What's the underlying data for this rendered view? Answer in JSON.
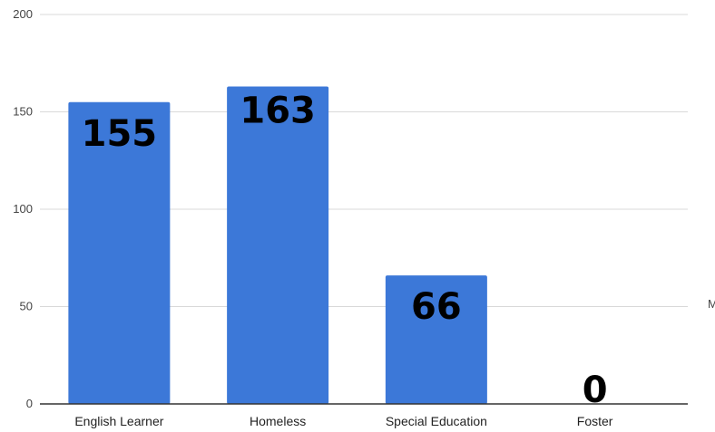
{
  "chart_data": {
    "type": "bar",
    "title": "",
    "xlabel": "",
    "ylabel": "",
    "categories": [
      "English Learner",
      "Homeless",
      "Special Education",
      "Foster"
    ],
    "values": [
      155,
      163,
      66,
      0
    ],
    "data_labels": [
      "155",
      "163",
      "66",
      "0"
    ],
    "ylim": [
      0,
      200
    ],
    "yticks": [
      "0",
      "50",
      "100",
      "150",
      "200"
    ],
    "grid": true,
    "legend": "none",
    "bar_color": "#3c78d8",
    "right_edge_text": "M"
  }
}
